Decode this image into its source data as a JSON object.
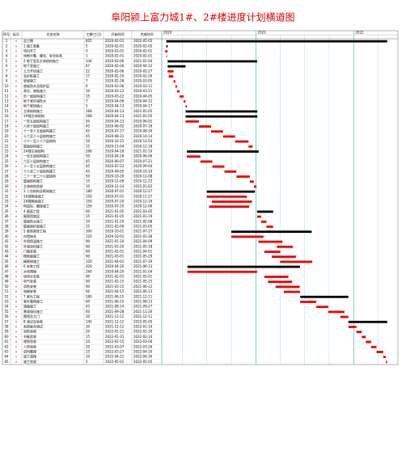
{
  "title": "阜阳颍上富力城1#、2#楼进度计划横道图",
  "columns": [
    "序号",
    "标识",
    "任务名称",
    "工期(工日)",
    "开始时间",
    "完成时间"
  ],
  "timeline": {
    "start": "2020-01-15",
    "end": "2022-06-15",
    "ticks": [
      {
        "value": "2020-01-15",
        "label": "2020"
      },
      {
        "value": "2021-01-01",
        "label": "2021"
      },
      {
        "value": "2022-01-01",
        "label": "2022"
      }
    ]
  },
  "rows": [
    [
      "1",
      "总工期",
      "825",
      "2020-02-01",
      "2022-05-05",
      "#000"
    ],
    [
      "2",
      "1 施工准备",
      "5",
      "2020-02-01",
      "2020-02-05",
      "#000"
    ],
    [
      "3",
      "项目开工",
      "0",
      "2020-02-01",
      "2020-02-01",
      "#e00"
    ],
    [
      "4",
      "场地平整、硬化、安全标准",
      "1",
      "2020-02-01",
      "2020-02-01",
      "#e00"
    ],
    [
      "5",
      "2 地下室及主体结构施工",
      "334",
      "2020-02-06",
      "2021-01-04",
      "#000"
    ],
    [
      "6",
      "地下室施工",
      "67",
      "2020-02-06",
      "2020-04-12",
      "#000"
    ],
    [
      "7",
      "土方开挖施工",
      "22",
      "2020-02-06",
      "2020-02-27",
      "#e00"
    ],
    [
      "8",
      "支护桩施工",
      "17",
      "2020-02-10",
      "2020-02-26",
      "#e00"
    ],
    [
      "9",
      "垫层施工",
      "7",
      "2020-02-28",
      "2020-03-05",
      "#e00"
    ],
    [
      "10",
      "底板防水及保护层",
      "6",
      "2020-03-06",
      "2020-03-11",
      "#e00"
    ],
    [
      "11",
      "承台、底板施工",
      "10",
      "2020-03-12",
      "2020-03-21",
      "#e00"
    ],
    [
      "12",
      "负一层结构施工",
      "15",
      "2020-03-22",
      "2020-04-05",
      "#e00"
    ],
    [
      "13",
      "地下室外墙防水",
      "7",
      "2020-04-06",
      "2020-04-12",
      "#e00"
    ],
    [
      "14",
      "地下室回填土",
      "5",
      "2020-04-13",
      "2020-04-17",
      "#e00"
    ],
    [
      "15",
      "主体结构施工",
      "268",
      "2020-04-13",
      "2021-01-05",
      "#000"
    ],
    [
      "16",
      "1#楼主体结构",
      "268",
      "2020-04-13",
      "2021-01-05",
      "#000"
    ],
    [
      "17",
      "一至五层结构施工",
      "50",
      "2020-04-13",
      "2020-06-01",
      "#e00"
    ],
    [
      "18",
      "六至十层结构施工",
      "45",
      "2020-06-02",
      "2020-07-16",
      "#e00"
    ],
    [
      "19",
      "十一至十五层结构施工",
      "45",
      "2020-07-17",
      "2020-08-30",
      "#e00"
    ],
    [
      "20",
      "十六至二十层结构施工",
      "45",
      "2020-08-31",
      "2020-10-14",
      "#e00"
    ],
    [
      "21",
      "二十一至二十六层结构",
      "50",
      "2020-10-15",
      "2020-12-03",
      "#e00"
    ],
    [
      "22",
      "屋面结构施工",
      "15",
      "2020-12-04",
      "2020-12-18",
      "#e00"
    ],
    [
      "23",
      "2#楼主体结构",
      "268",
      "2020-04-18",
      "2021-01-10",
      "#000"
    ],
    [
      "24",
      "一至五层结构施工",
      "50",
      "2020-04-18",
      "2020-06-06",
      "#e00"
    ],
    [
      "25",
      "六至十层结构施工",
      "45",
      "2020-06-07",
      "2020-07-21",
      "#e00"
    ],
    [
      "26",
      "十一至十五层结构施工",
      "45",
      "2020-07-22",
      "2020-09-04",
      "#e00"
    ],
    [
      "27",
      "十六至二十层结构施工",
      "45",
      "2020-09-05",
      "2020-10-19",
      "#e00"
    ],
    [
      "28",
      "二十一至二十六层结构",
      "50",
      "2020-10-20",
      "2020-12-08",
      "#e00"
    ],
    [
      "29",
      "屋面结构施工",
      "15",
      "2020-12-09",
      "2020-12-23",
      "#e00"
    ],
    [
      "30",
      "主体结构验收",
      "10",
      "2020-12-24",
      "2021-01-02",
      "#e00"
    ],
    [
      "31",
      "3 二次结构及砌体施工",
      "180",
      "2020-07-01",
      "2020-12-27",
      "#000"
    ],
    [
      "32",
      "1#楼砌体施工",
      "150",
      "2020-07-01",
      "2020-11-27",
      "#e00"
    ],
    [
      "33",
      "2#楼砌体施工",
      "150",
      "2020-07-20",
      "2020-12-16",
      "#e00"
    ],
    [
      "34",
      "构造柱、圈梁施工",
      "150",
      "2020-07-10",
      "2020-12-06",
      "#e00"
    ],
    [
      "35",
      "4 屋面工程",
      "60",
      "2021-01-05",
      "2021-03-05",
      "#000"
    ],
    [
      "36",
      "屋面找坡层",
      "15",
      "2021-01-05",
      "2021-01-19",
      "#e00"
    ],
    [
      "37",
      "屋面防水施工",
      "20",
      "2021-01-20",
      "2021-02-08",
      "#e00"
    ],
    [
      "38",
      "屋面保护层施工",
      "25",
      "2021-02-09",
      "2021-03-05",
      "#e00"
    ],
    [
      "39",
      "5 装饰装修工程",
      "300",
      "2020-10-01",
      "2021-07-27",
      "#000"
    ],
    [
      "40",
      "内墙抹灰",
      "120",
      "2020-10-01",
      "2021-01-28",
      "#e00"
    ],
    [
      "41",
      "外墙保温施工",
      "90",
      "2021-01-10",
      "2021-04-09",
      "#e00"
    ],
    [
      "42",
      "外墙涂料施工",
      "60",
      "2021-03-20",
      "2021-05-18",
      "#e00"
    ],
    [
      "43",
      "门窗安装",
      "60",
      "2021-02-01",
      "2021-04-01",
      "#e00"
    ],
    [
      "44",
      "楼地面施工",
      "90",
      "2021-03-01",
      "2021-05-29",
      "#e00"
    ],
    [
      "45",
      "精装修施工",
      "120",
      "2021-04-01",
      "2021-07-29",
      "#e00"
    ],
    [
      "46",
      "6 安装工程",
      "420",
      "2020-04-20",
      "2021-06-13",
      "#000"
    ],
    [
      "47",
      "水电预埋",
      "260",
      "2020-04-20",
      "2021-01-04",
      "#e00"
    ],
    [
      "48",
      "给排水安装",
      "90",
      "2021-02-01",
      "2021-05-01",
      "#e00"
    ],
    [
      "49",
      "电气安装",
      "90",
      "2021-02-15",
      "2021-05-15",
      "#e00"
    ],
    [
      "50",
      "消防安装",
      "90",
      "2021-03-15",
      "2021-06-12",
      "#e00"
    ],
    [
      "51",
      "电梯安装",
      "60",
      "2021-04-15",
      "2021-06-13",
      "#e00"
    ],
    [
      "52",
      "7 室外工程",
      "180",
      "2021-06-15",
      "2021-12-11",
      "#000"
    ],
    [
      "53",
      "室外管网施工",
      "60",
      "2021-06-15",
      "2021-08-13",
      "#e00"
    ],
    [
      "54",
      "道路施工",
      "45",
      "2021-08-14",
      "2021-09-27",
      "#e00"
    ],
    [
      "55",
      "景观绿化施工",
      "60",
      "2021-09-28",
      "2021-11-26",
      "#e00"
    ],
    [
      "56",
      "围墙及大门",
      "30",
      "2021-11-12",
      "2021-12-11",
      "#e00"
    ],
    [
      "57",
      "8 调试及验收",
      "145",
      "2021-12-12",
      "2022-05-05",
      "#000"
    ],
    [
      "58",
      "系统联合调试",
      "30",
      "2021-12-12",
      "2022-01-10",
      "#e00"
    ],
    [
      "59",
      "消防验收",
      "20",
      "2022-01-11",
      "2022-01-30",
      "#e00"
    ],
    [
      "60",
      "节能验收",
      "15",
      "2022-01-31",
      "2022-02-14",
      "#e00"
    ],
    [
      "61",
      "规划验收",
      "20",
      "2022-02-15",
      "2022-03-06",
      "#e00"
    ],
    [
      "62",
      "人防验收",
      "20",
      "2022-03-07",
      "2022-03-26",
      "#e00"
    ],
    [
      "63",
      "资料整理",
      "25",
      "2022-03-27",
      "2022-04-20",
      "#e00"
    ],
    [
      "64",
      "竣工清理",
      "10",
      "2022-04-21",
      "2022-04-30",
      "#e00"
    ],
    [
      "65",
      "竣工验收",
      "5",
      "2022-05-01",
      "2022-05-05",
      "#e00"
    ]
  ]
}
